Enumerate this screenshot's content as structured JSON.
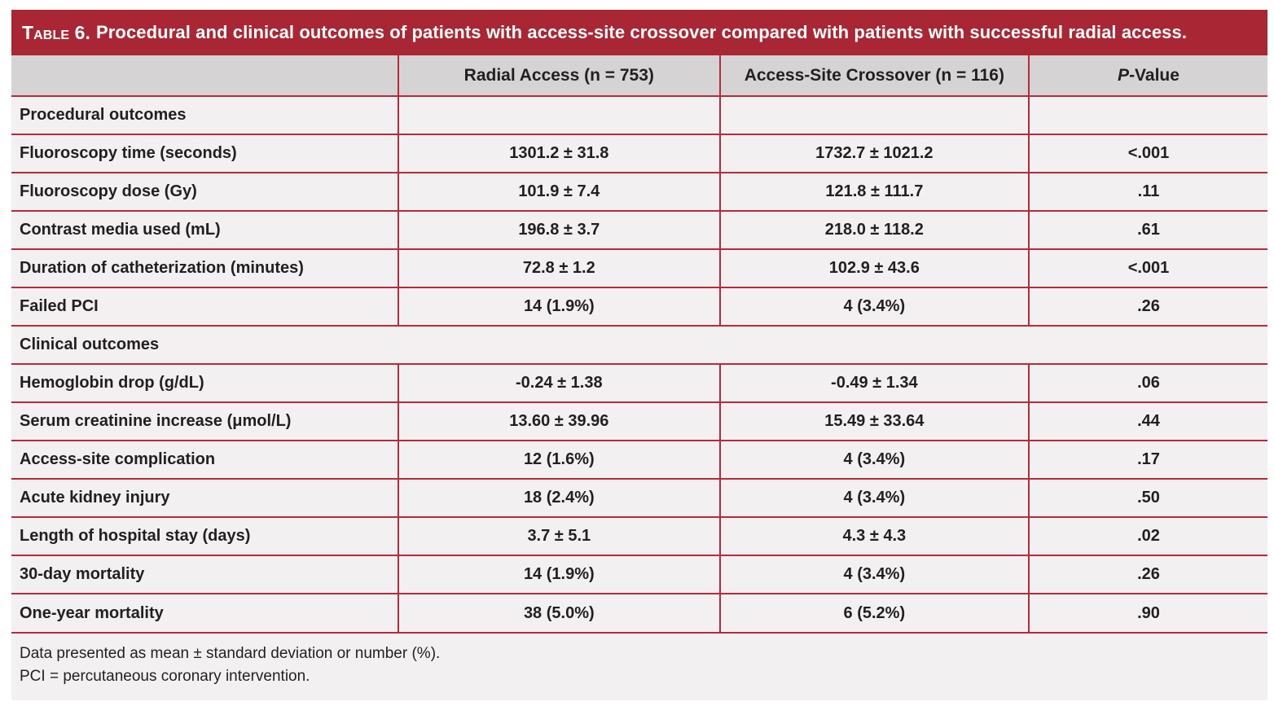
{
  "title": {
    "label": "Table 6.",
    "text": "Procedural and clinical outcomes of patients with access-site crossover compared with patients with successful radial access."
  },
  "colors": {
    "banner_red": "#a92634",
    "line_red": "#b42c3c",
    "header_gray": "#d5d3d4",
    "row_bg": "#f2f0f0",
    "text_dark": "#231f20",
    "title_text": "#ffffff"
  },
  "table": {
    "columns": [
      {
        "label": ""
      },
      {
        "label": "Radial Access (n = 753)"
      },
      {
        "label": "Access-Site Crossover (n = 116)"
      },
      {
        "label": "P-Value",
        "italic_prefix": "P",
        "rest": "-Value"
      }
    ],
    "rows": [
      {
        "type": "section",
        "label": "Procedural outcomes",
        "divided": true
      },
      {
        "type": "data",
        "label": "Fluoroscopy time (seconds)",
        "radial": "1301.2 ± 31.8",
        "crossover": "1732.7 ± 1021.2",
        "p": "<.001"
      },
      {
        "type": "data",
        "label": "Fluoroscopy dose (Gy)",
        "radial": "101.9 ± 7.4",
        "crossover": "121.8 ± 111.7",
        "p": ".11"
      },
      {
        "type": "data",
        "label": "Contrast media used (mL)",
        "radial": "196.8 ± 3.7",
        "crossover": "218.0 ± 118.2",
        "p": ".61"
      },
      {
        "type": "data",
        "label": "Duration of catheterization (minutes)",
        "radial": "72.8 ± 1.2",
        "crossover": "102.9 ± 43.6",
        "p": "<.001"
      },
      {
        "type": "data",
        "label": "Failed PCI",
        "radial": "14 (1.9%)",
        "crossover": "4 (3.4%)",
        "p": ".26"
      },
      {
        "type": "section",
        "label": "Clinical outcomes",
        "divided": false
      },
      {
        "type": "data",
        "label": "Hemoglobin drop (g/dL)",
        "radial": "-0.24 ± 1.38",
        "crossover": "-0.49 ± 1.34",
        "p": ".06"
      },
      {
        "type": "data",
        "label": "Serum creatinine increase (μmol/L)",
        "radial": "13.60 ± 39.96",
        "crossover": "15.49 ± 33.64",
        "p": ".44"
      },
      {
        "type": "data",
        "label": "Access-site complication",
        "radial": "12 (1.6%)",
        "crossover": "4 (3.4%)",
        "p": ".17"
      },
      {
        "type": "data",
        "label": "Acute kidney injury",
        "radial": "18 (2.4%)",
        "crossover": "4 (3.4%)",
        "p": ".50"
      },
      {
        "type": "data",
        "label": "Length of hospital stay (days)",
        "radial": "3.7 ± 5.1",
        "crossover": "4.3 ± 4.3",
        "p": ".02"
      },
      {
        "type": "data",
        "label": "30-day mortality",
        "radial": "14 (1.9%)",
        "crossover": "4 (3.4%)",
        "p": ".26"
      },
      {
        "type": "data",
        "label": "One-year mortality",
        "radial": "38 (5.0%)",
        "crossover": "6 (5.2%)",
        "p": ".90"
      }
    ],
    "footnotes": [
      "Data presented as mean ± standard deviation or number (%).",
      "PCI = percutaneous coronary intervention."
    ]
  }
}
